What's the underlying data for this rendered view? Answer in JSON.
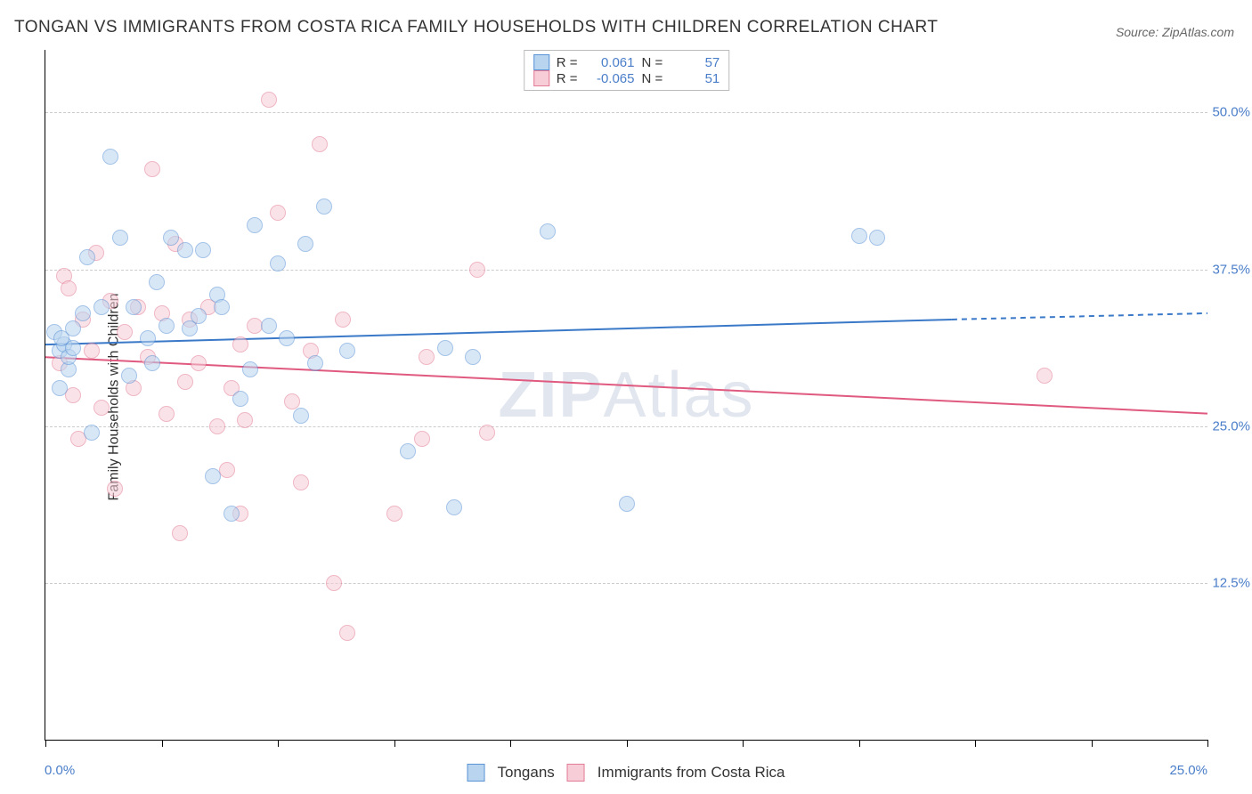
{
  "title": "TONGAN VS IMMIGRANTS FROM COSTA RICA FAMILY HOUSEHOLDS WITH CHILDREN CORRELATION CHART",
  "source": "Source: ZipAtlas.com",
  "watermark_a": "ZIP",
  "watermark_b": "Atlas",
  "ylabel": "Family Households with Children",
  "chart": {
    "type": "scatter",
    "background_color": "#ffffff",
    "grid_color": "#cccccc",
    "axis_color": "#000000",
    "point_radius": 9,
    "point_opacity": 0.55,
    "xlim": [
      0,
      25
    ],
    "ylim": [
      0,
      55
    ],
    "y_ticks": [
      12.5,
      25.0,
      37.5,
      50.0
    ],
    "y_tick_labels": [
      "12.5%",
      "25.0%",
      "37.5%",
      "50.0%"
    ],
    "x_ticks": [
      0,
      2.5,
      5.0,
      7.5,
      10.0,
      12.5,
      15.0,
      17.5,
      20.0,
      22.5,
      25.0
    ],
    "x_first_label": "0.0%",
    "x_last_label": "25.0%",
    "label_color": "#4a7ec9",
    "label_fontsize": 15
  },
  "series": {
    "blue": {
      "label": "Tongans",
      "R": "0.061",
      "N": "57",
      "fill": "#b9d4ef",
      "stroke": "#5a93d6",
      "trend": {
        "y_at_x0": 31.5,
        "y_at_solid_end": 33.5,
        "solid_end_x": 19.5,
        "y_at_x25": 34.0,
        "stroke": "#3a78c8",
        "stroke_width": 2
      },
      "points": [
        [
          0.2,
          32.5
        ],
        [
          0.3,
          28.0
        ],
        [
          0.3,
          31.0
        ],
        [
          0.4,
          31.5
        ],
        [
          0.35,
          32.0
        ],
        [
          0.5,
          29.5
        ],
        [
          0.5,
          30.5
        ],
        [
          0.6,
          32.8
        ],
        [
          0.6,
          31.2
        ],
        [
          0.8,
          34.0
        ],
        [
          0.9,
          38.5
        ],
        [
          1.0,
          24.5
        ],
        [
          1.2,
          34.5
        ],
        [
          1.4,
          46.5
        ],
        [
          1.6,
          40.0
        ],
        [
          1.8,
          29.0
        ],
        [
          1.9,
          34.5
        ],
        [
          2.2,
          32.0
        ],
        [
          2.3,
          30.0
        ],
        [
          2.4,
          36.5
        ],
        [
          2.6,
          33.0
        ],
        [
          2.7,
          40.0
        ],
        [
          3.0,
          39.0
        ],
        [
          3.1,
          32.8
        ],
        [
          3.3,
          33.8
        ],
        [
          3.4,
          39.0
        ],
        [
          3.6,
          21.0
        ],
        [
          3.7,
          35.5
        ],
        [
          3.8,
          34.5
        ],
        [
          4.0,
          18.0
        ],
        [
          4.2,
          27.2
        ],
        [
          4.4,
          29.5
        ],
        [
          4.5,
          41.0
        ],
        [
          4.8,
          33.0
        ],
        [
          5.0,
          38.0
        ],
        [
          5.2,
          32.0
        ],
        [
          5.5,
          25.8
        ],
        [
          5.6,
          39.5
        ],
        [
          5.8,
          30.0
        ],
        [
          6.0,
          42.5
        ],
        [
          6.5,
          31.0
        ],
        [
          7.8,
          23.0
        ],
        [
          8.6,
          31.2
        ],
        [
          8.8,
          18.5
        ],
        [
          9.2,
          30.5
        ],
        [
          10.8,
          40.5
        ],
        [
          12.5,
          18.8
        ],
        [
          17.5,
          40.2
        ],
        [
          17.9,
          40.0
        ]
      ]
    },
    "pink": {
      "label": "Immigrants from Costa Rica",
      "R": "-0.065",
      "N": "51",
      "fill": "#f7cdd7",
      "stroke": "#e27b95",
      "trend": {
        "y_at_x0": 30.5,
        "y_at_x25": 26.0,
        "stroke": "#e05a80",
        "stroke_width": 2
      },
      "points": [
        [
          0.3,
          30.0
        ],
        [
          0.4,
          37.0
        ],
        [
          0.5,
          36.0
        ],
        [
          0.6,
          27.5
        ],
        [
          0.7,
          24.0
        ],
        [
          0.8,
          33.5
        ],
        [
          1.0,
          31.0
        ],
        [
          1.1,
          38.8
        ],
        [
          1.2,
          26.5
        ],
        [
          1.4,
          35.0
        ],
        [
          1.5,
          20.0
        ],
        [
          1.7,
          32.5
        ],
        [
          1.9,
          28.0
        ],
        [
          2.0,
          34.5
        ],
        [
          2.2,
          30.5
        ],
        [
          2.3,
          45.5
        ],
        [
          2.5,
          34.0
        ],
        [
          2.6,
          26.0
        ],
        [
          2.8,
          39.5
        ],
        [
          2.9,
          16.5
        ],
        [
          3.0,
          28.5
        ],
        [
          3.1,
          33.5
        ],
        [
          3.3,
          30.0
        ],
        [
          3.5,
          34.5
        ],
        [
          3.7,
          25.0
        ],
        [
          3.9,
          21.5
        ],
        [
          4.0,
          28.0
        ],
        [
          4.2,
          31.5
        ],
        [
          4.2,
          18.0
        ],
        [
          4.3,
          25.5
        ],
        [
          4.5,
          33.0
        ],
        [
          4.8,
          51.0
        ],
        [
          5.0,
          42.0
        ],
        [
          5.3,
          27.0
        ],
        [
          5.5,
          20.5
        ],
        [
          5.7,
          31.0
        ],
        [
          5.9,
          47.5
        ],
        [
          6.2,
          12.5
        ],
        [
          6.4,
          33.5
        ],
        [
          6.5,
          8.5
        ],
        [
          7.5,
          18.0
        ],
        [
          8.1,
          24.0
        ],
        [
          8.2,
          30.5
        ],
        [
          9.3,
          37.5
        ],
        [
          9.5,
          24.5
        ],
        [
          21.5,
          29.0
        ]
      ]
    }
  },
  "legend_top": {
    "r_label": "R =",
    "n_label": "N ="
  }
}
